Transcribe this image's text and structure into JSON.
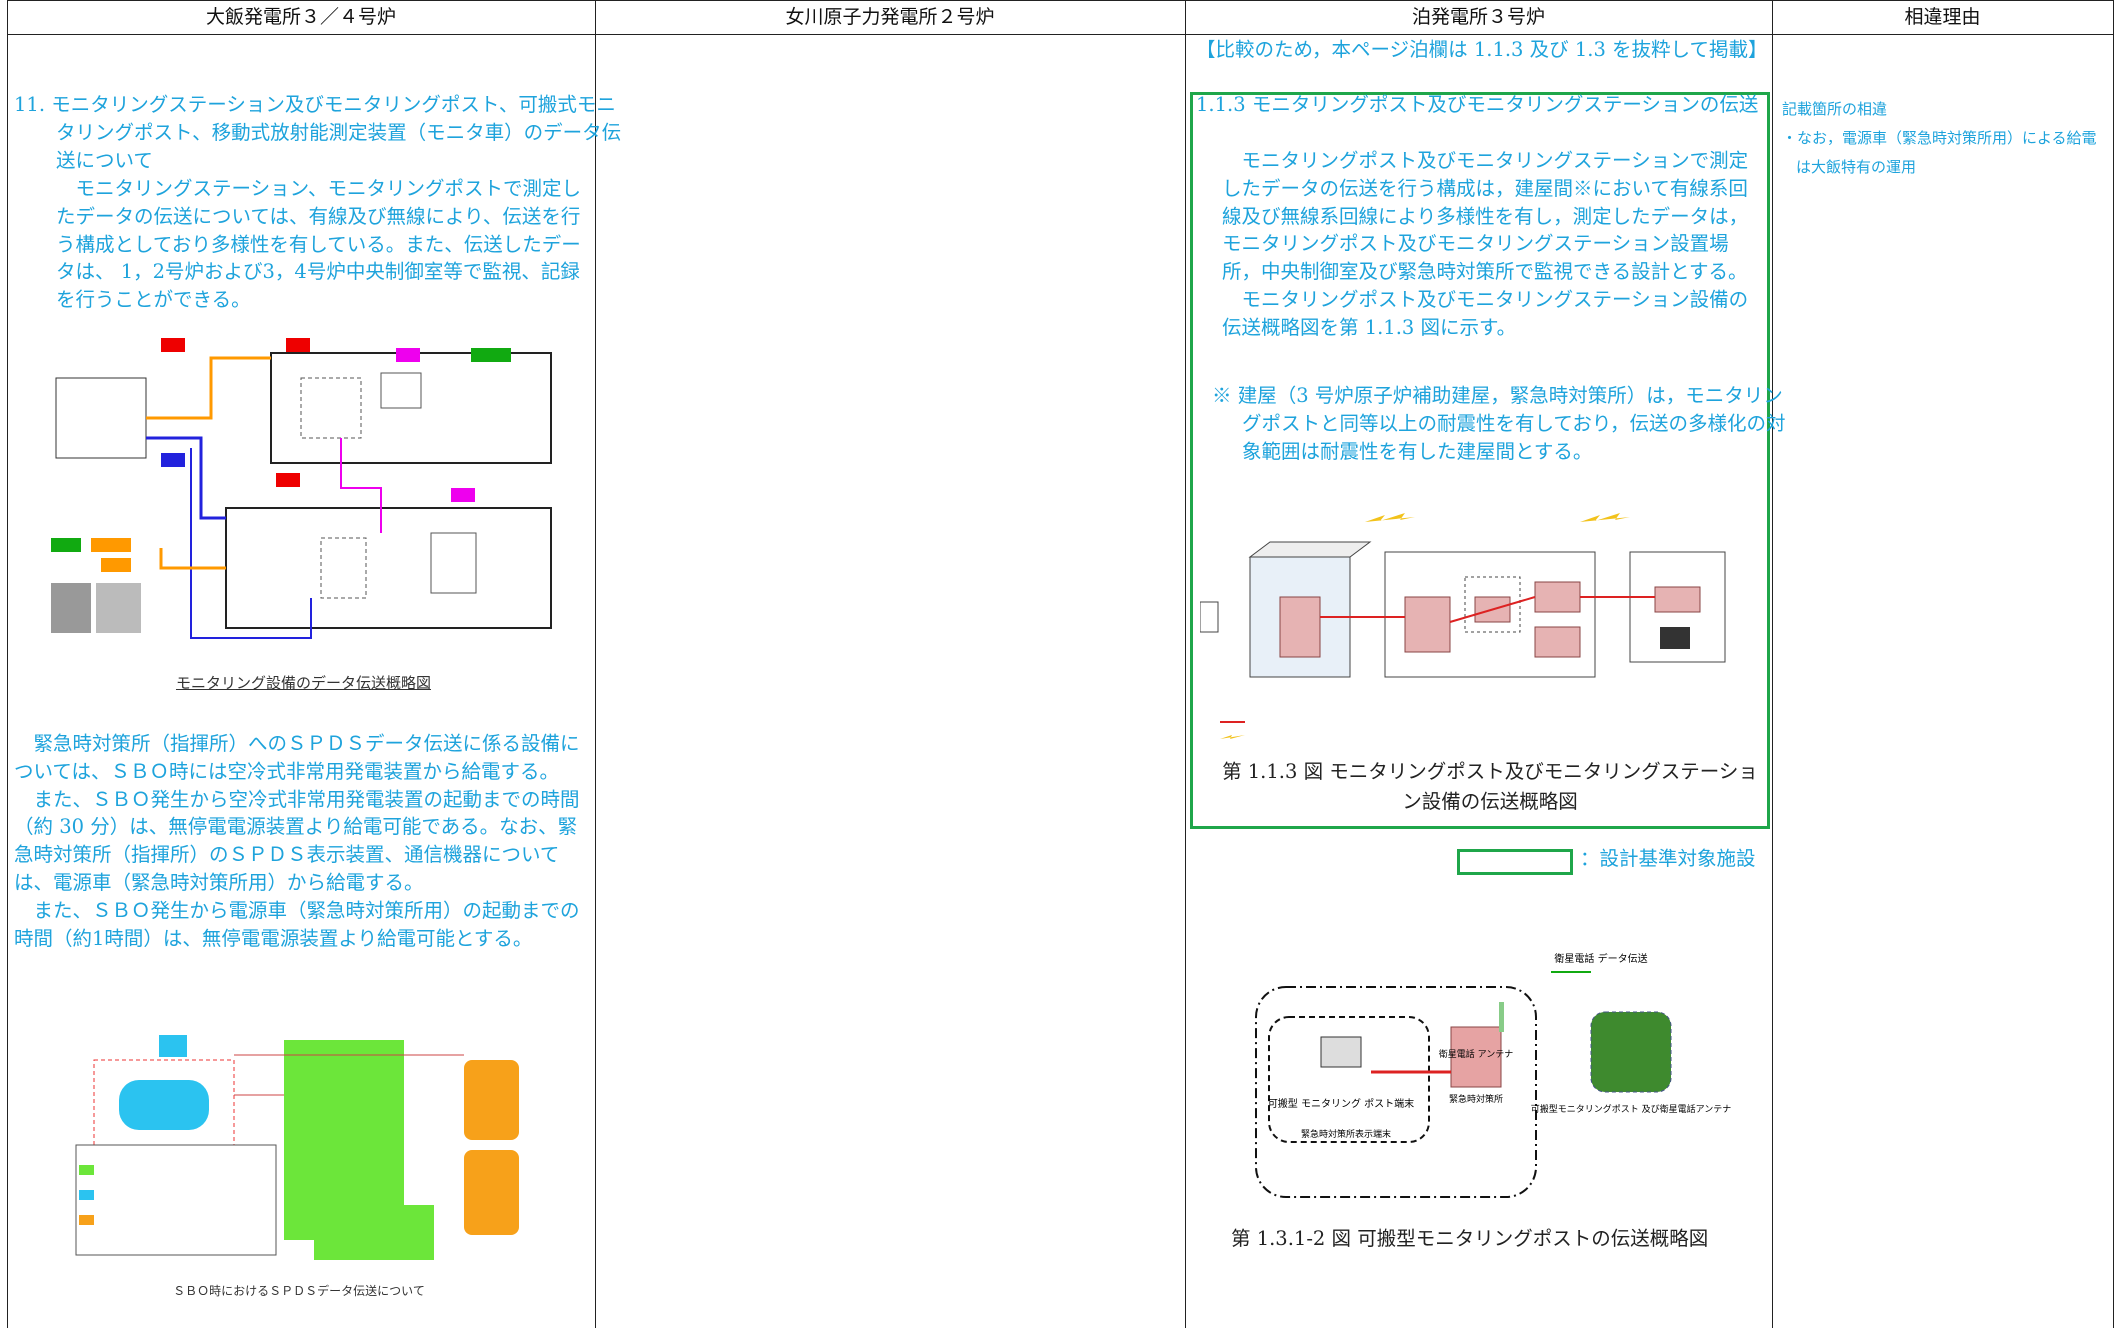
{
  "table": {
    "headers": [
      "大飯発電所３／４号炉",
      "女川原子力発電所２号炉",
      "泊発電所３号炉",
      "相違理由"
    ],
    "col1": {
      "heading": "11. モニタリングステーション及びモニタリングポスト、可搬式モニタリングポスト、移動式放射能測定装置（モニタ車）のデータ伝送について",
      "paragraphs": [
        "モニタリングステーション、モニタリングポストで測定したデータの伝送については、有線及び無線により、伝送を行う構成としており多様性を有している。また、伝送したデータは、 1，2号炉および3，4号炉中央制御室等で監視、記録を行うことができる。"
      ],
      "figure1_caption": "モニタリング設備のデータ伝送概略図",
      "paragraphs2": [
        "緊急時対策所（指揮所）へのＳＰＤＳデータ伝送に係る設備については、ＳＢＯ時には空冷式非常用発電装置から給電する。",
        "また、ＳＢＯ発生から空冷式非常用発電装置の起動までの時間（約 30 分）は、無停電電源装置より給電可能である。なお、緊急時対策所（指揮所）のＳＰＤＳ表示装置、通信機器については、電源車（緊急時対策所用）から給電する。",
        "また、ＳＢＯ発生から電源車（緊急時対策所用）の起動までの時間（約1時間）は、無停電電源装置より給電可能とする。"
      ],
      "figure2_caption": "ＳＢＯ時におけるＳＰＤＳデータ伝送について"
    },
    "col3": {
      "note": "【比較のため，本ページ泊欄は 1.1.3 及び 1.3 を抜粋して掲載】",
      "heading": "1.1.3 モニタリングポスト及びモニタリングステーションの伝送",
      "paragraphs": [
        "モニタリングポスト及びモニタリングステーションで測定したデータの伝送を行う構成は，建屋間※において有線系回線及び無線系回線により多様性を有し，測定したデータは，モニタリングポスト及びモニタリングステーション設置場所，中央制御室及び緊急時対策所で監視できる設計とする。",
        "モニタリングポスト及びモニタリングステーション設備の伝送概略図を第 1.1.3 図に示す。"
      ],
      "remark": "※ 建屋（3 号炉原子炉補助建屋，緊急時対策所）は，モニタリングポストと同等以上の耐震性を有しており，伝送の多様化の対象範囲は耐震性を有した建屋間とする。",
      "figure1_caption": "第 1.1.3 図 モニタリングポスト及びモニタリングステーション設備の伝送概略図",
      "legend": "：設計基準対象施設",
      "figure2_labels": [
        "衛星電話 データ伝送",
        "可搬型 モニタリング ポスト端末",
        "衛星電話 アンテナ",
        "緊急時対策所",
        "可搬型モニタリングポスト 及び衛星電話アンテナ",
        "緊急時対策所表示端末"
      ],
      "figure2_caption": "第 1.3.1-2 図 可搬型モニタリングポストの伝送概略図"
    },
    "col4": [
      "記載箇所の相違",
      "・なお，電源車（緊急時対策所用）による給電は大飯特有の運用"
    ]
  }
}
